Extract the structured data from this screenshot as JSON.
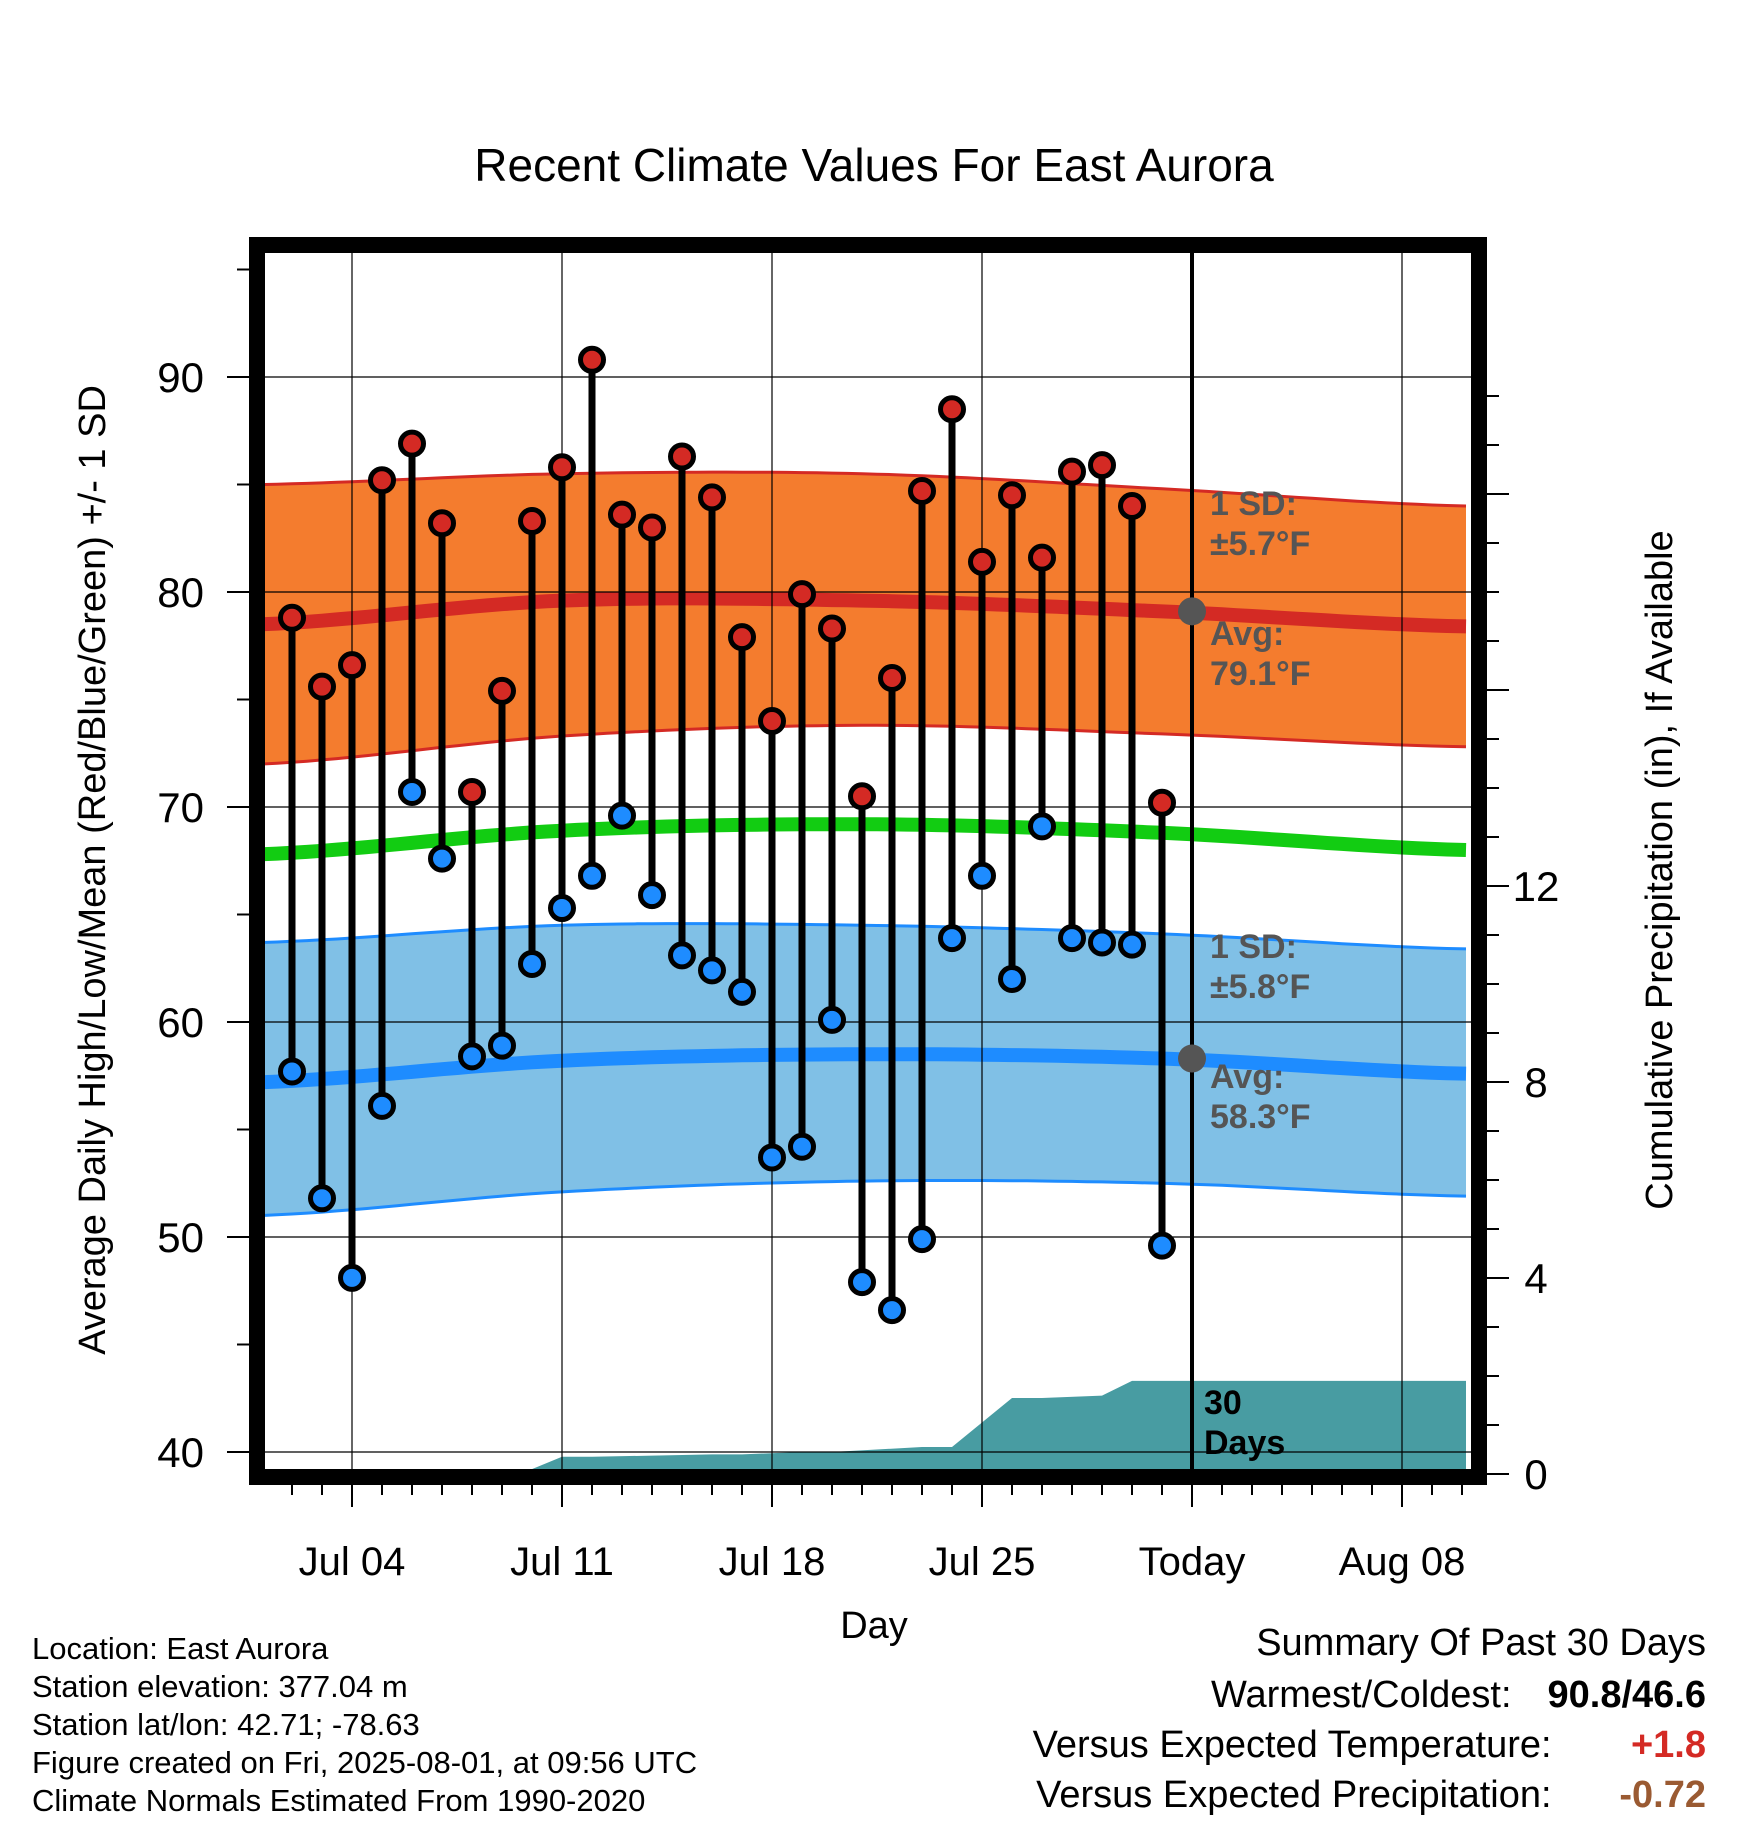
{
  "chart_data": {
    "type": "line",
    "title": "Recent Climate Values For East Aurora",
    "xlabel": "Day",
    "ylabel": "Average Daily High/Low/Mean (Red/Blue/Green) +/- 1 SD",
    "y2label": "Cumulative Precipitation (in), If Available",
    "x_tick_labels": [
      "Jul 04",
      "Jul 11",
      "Jul 18",
      "Jul 25",
      "Today",
      "Aug 08"
    ],
    "y_ticks": [
      40,
      50,
      60,
      70,
      80,
      90
    ],
    "ylim": [
      39,
      96
    ],
    "y2_ticks": [
      0,
      4,
      8,
      12
    ],
    "y2lim": [
      0,
      24.4
    ],
    "grid": true,
    "start_date": "2025-07-01",
    "end_date": "2025-08-10",
    "today": "2025-08-01",
    "observed": {
      "dates": [
        "2025-07-02",
        "2025-07-03",
        "2025-07-04",
        "2025-07-05",
        "2025-07-06",
        "2025-07-07",
        "2025-07-08",
        "2025-07-09",
        "2025-07-10",
        "2025-07-11",
        "2025-07-12",
        "2025-07-13",
        "2025-07-14",
        "2025-07-15",
        "2025-07-16",
        "2025-07-17",
        "2025-07-18",
        "2025-07-19",
        "2025-07-20",
        "2025-07-21",
        "2025-07-22",
        "2025-07-23",
        "2025-07-24",
        "2025-07-25",
        "2025-07-26",
        "2025-07-27",
        "2025-07-28",
        "2025-07-29",
        "2025-07-30",
        "2025-07-31"
      ],
      "highs": [
        78.8,
        75.6,
        76.6,
        85.2,
        86.9,
        83.2,
        70.7,
        75.4,
        83.3,
        85.8,
        90.8,
        83.6,
        83.0,
        86.3,
        84.4,
        77.9,
        74.0,
        79.9,
        78.3,
        70.5,
        76.0,
        84.7,
        88.5,
        81.4,
        84.5,
        81.6,
        85.6,
        85.9,
        84.0,
        70.2
      ],
      "lows": [
        57.7,
        51.8,
        48.1,
        56.1,
        70.7,
        67.6,
        58.4,
        58.9,
        62.7,
        65.3,
        66.8,
        69.6,
        65.9,
        63.1,
        62.4,
        61.4,
        53.7,
        54.2,
        60.1,
        47.9,
        46.6,
        49.9,
        63.9,
        66.8,
        62.0,
        69.1,
        63.9,
        63.7,
        63.6,
        49.6
      ]
    },
    "normals": {
      "dates": [
        "2025-07-01",
        "2025-07-11",
        "2025-07-21",
        "2025-07-31",
        "2025-08-10"
      ],
      "avg_high": [
        78.5,
        79.6,
        79.6,
        79.1,
        78.4
      ],
      "avg_high_minus_sd": [
        72.0,
        73.3,
        73.8,
        73.4,
        72.8
      ],
      "avg_high_plus_sd": [
        85.0,
        85.5,
        85.5,
        84.8,
        84.0
      ],
      "avg_low": [
        57.2,
        58.2,
        58.5,
        58.3,
        57.6
      ],
      "avg_low_minus_sd": [
        51.0,
        52.1,
        52.6,
        52.5,
        51.9
      ],
      "avg_low_plus_sd": [
        63.7,
        64.5,
        64.5,
        64.1,
        63.4
      ],
      "avg_mean": [
        67.8,
        68.9,
        69.2,
        68.8,
        68.0
      ]
    },
    "precip": {
      "dates": [
        "2025-07-01",
        "2025-07-06",
        "2025-07-07",
        "2025-07-10",
        "2025-07-11",
        "2025-07-12",
        "2025-07-16",
        "2025-07-17",
        "2025-07-19",
        "2025-07-20",
        "2025-07-23",
        "2025-07-24",
        "2025-07-26",
        "2025-07-27",
        "2025-07-29",
        "2025-07-30",
        "2025-08-10"
      ],
      "cumulative": [
        0.0,
        0.0,
        0.1,
        0.1,
        0.35,
        0.35,
        0.4,
        0.4,
        0.45,
        0.45,
        0.55,
        0.55,
        1.55,
        1.55,
        1.6,
        1.9,
        1.9
      ]
    },
    "annotations": {
      "high_sd_label": "1 SD:",
      "high_sd_value": "±5.7°F",
      "high_avg_label": "Avg:",
      "high_avg_value": "79.1°F",
      "low_sd_label": "1 SD:",
      "low_sd_value": "±5.8°F",
      "low_avg_label": "Avg:",
      "low_avg_value": "58.3°F",
      "days_num": "30",
      "days_word": "Days"
    },
    "colors": {
      "high_band": "#f47c2e",
      "high_line": "#d42a24",
      "low_band": "#80c0e6",
      "low_line": "#1e8cff",
      "mean_line": "#12cc12",
      "precip": "#489ca2",
      "high_marker": "#d42a24",
      "low_marker": "#1e8cff",
      "avg_marker": "#555555"
    }
  },
  "station": {
    "location": "Location: East Aurora",
    "elevation": "Station elevation: 377.04 m",
    "latlon": "Station lat/lon: 42.71; -78.63",
    "created": "Figure created on Fri, 2025-08-01, at 09:56 UTC",
    "normals": "Climate Normals Estimated From 1990-2020"
  },
  "summary": {
    "title": "Summary Of Past 30 Days",
    "warm_cold_label": "Warmest/Coldest:",
    "warm_cold_value": "90.8/46.6",
    "temp_label": "Versus Expected Temperature:",
    "temp_value": "+1.8",
    "temp_color": "#d42a24",
    "precip_label": "Versus Expected Precipitation:",
    "precip_value": "-0.72",
    "precip_color": "#9a5a32"
  }
}
